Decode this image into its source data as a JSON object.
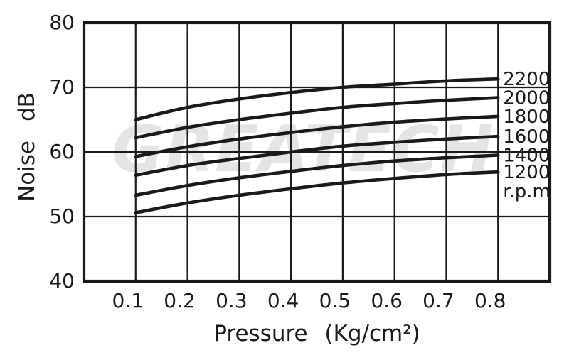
{
  "watermark": {
    "text": "GREATECH",
    "color": "#e4e4e4"
  },
  "chart_data": {
    "type": "line",
    "title": "",
    "xlabel": "Pressure (Kg/cm²)",
    "ylabel": "Noise dB",
    "xlim": [
      0,
      0.9
    ],
    "ylim": [
      40,
      80
    ],
    "grid": true,
    "line_color": "#1a1a1a",
    "legend_position": "inside-right, at curve ends",
    "x_ticks": {
      "values": [
        0.1,
        0.2,
        0.3,
        0.4,
        0.5,
        0.6,
        0.7,
        0.8
      ],
      "labels": [
        "0.1",
        "0.2",
        "0.3",
        "0.4",
        "0.5",
        "0.6",
        "0.7",
        "0.8"
      ]
    },
    "y_ticks": {
      "values": [
        80,
        70,
        60,
        50,
        40
      ],
      "labels": [
        "80",
        "70",
        "60",
        "50",
        "40"
      ]
    },
    "x": [
      0.1,
      0.2,
      0.3,
      0.4,
      0.5,
      0.6,
      0.7,
      0.8
    ],
    "series": [
      {
        "name": "2200",
        "values": [
          65.0,
          66.9,
          68.2,
          69.2,
          70.0,
          70.5,
          71.0,
          71.3
        ]
      },
      {
        "name": "2000",
        "values": [
          62.2,
          63.8,
          65.0,
          66.0,
          66.9,
          67.5,
          68.0,
          68.4
        ]
      },
      {
        "name": "1800",
        "values": [
          59.3,
          60.8,
          62.0,
          63.0,
          63.9,
          64.6,
          65.1,
          65.5
        ]
      },
      {
        "name": "1600",
        "values": [
          56.4,
          57.9,
          59.0,
          60.0,
          60.9,
          61.5,
          62.0,
          62.4
        ]
      },
      {
        "name": "1400",
        "values": [
          53.3,
          54.8,
          56.0,
          57.0,
          57.9,
          58.6,
          59.1,
          59.5
        ]
      },
      {
        "name": "1200",
        "values": [
          50.6,
          52.1,
          53.3,
          54.3,
          55.2,
          55.9,
          56.5,
          56.9
        ]
      }
    ],
    "series_unit": "r.p.m"
  }
}
